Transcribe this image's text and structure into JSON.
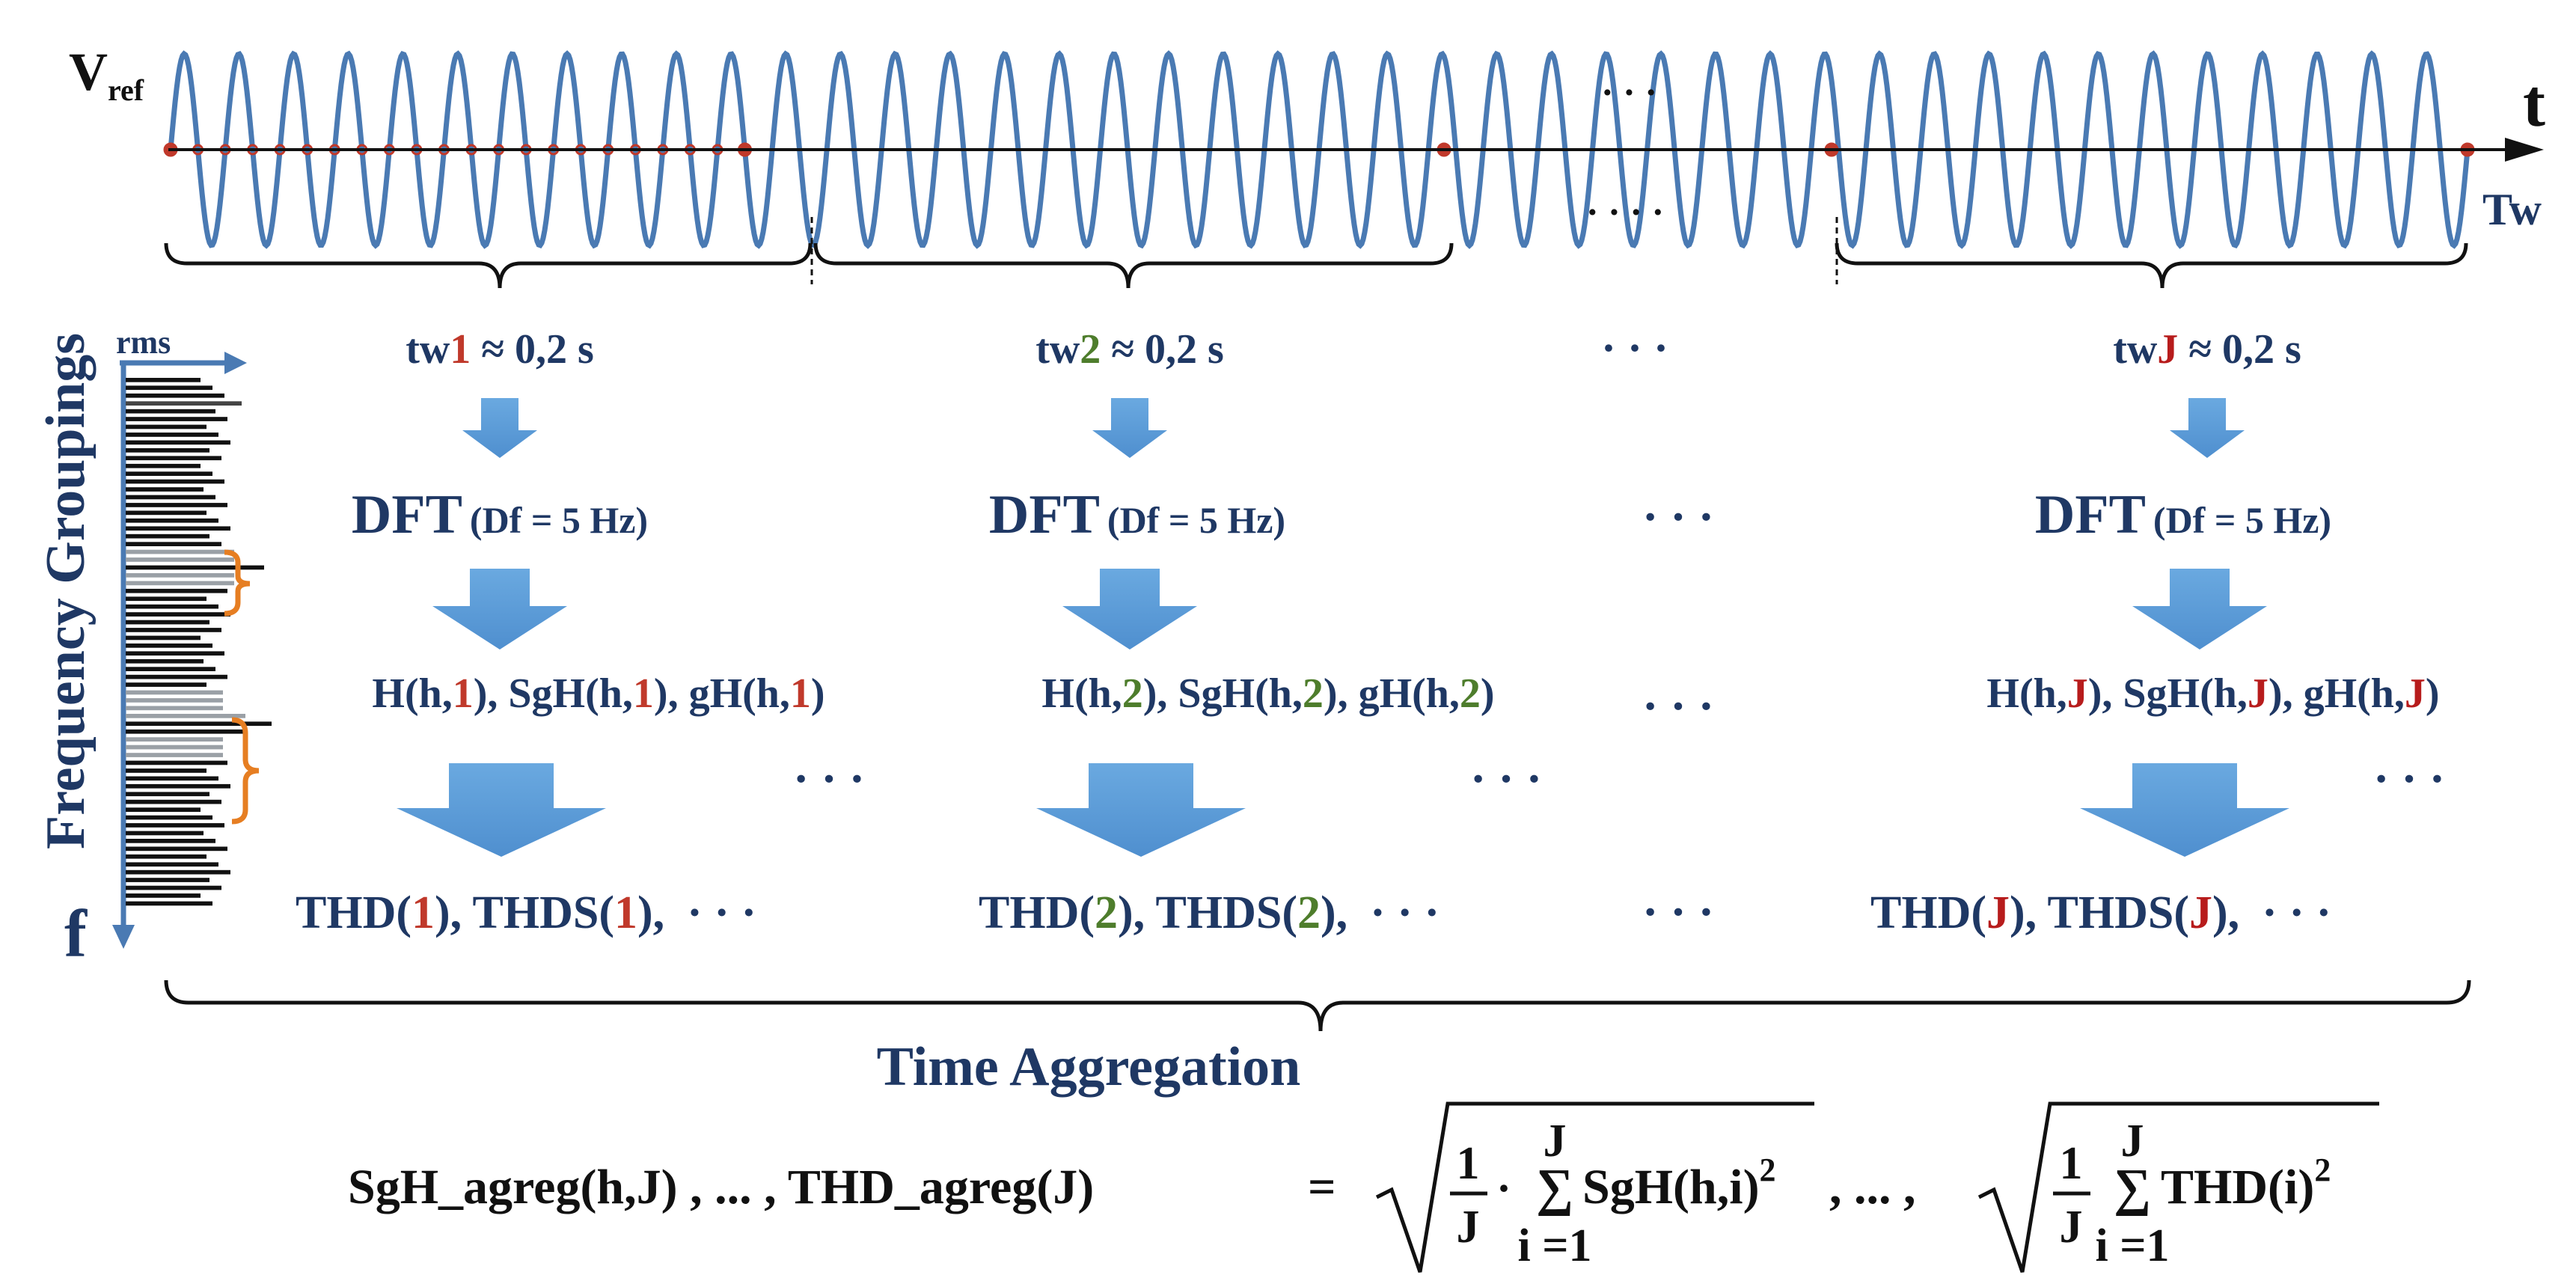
{
  "signal": {
    "label_main": "V",
    "label_sub": "ref",
    "time_axis_label": "t",
    "window_axis_label": "Tw",
    "ellipsis_top": "· · ·",
    "ellipsis_bottom": "· · · ·",
    "line_color": "#4a7ab3",
    "marker_color": "#c0392b"
  },
  "spectrum": {
    "title": "Frequency Groupings",
    "rms_label": "rms",
    "freq_label": "f",
    "bracket_color": "#e67e22",
    "axis_color": "#4a7ab3"
  },
  "windows": [
    {
      "id": "1",
      "tw_prefix": "tw",
      "tw_suffix": " ≈ 0,2 s",
      "dft_main": "DFT",
      "dft_param": "(Df = 5 Hz)",
      "harm_1": "H(h,",
      "harm_2": "), SgH(h,",
      "harm_3": "), gH(h,",
      "harm_4": ")",
      "thd_1": "THD(",
      "thd_2": "), THDS(",
      "thd_3": "),",
      "thd_ellipsis": "· · ·",
      "index_color": "#c0392b"
    },
    {
      "id": "2",
      "tw_prefix": "tw",
      "tw_suffix": " ≈ 0,2 s",
      "dft_main": "DFT",
      "dft_param": "(Df = 5 Hz)",
      "harm_1": "H(h,",
      "harm_2": "), SgH(h,",
      "harm_3": "), gH(h,",
      "harm_4": ")",
      "thd_1": "THD(",
      "thd_2": "), THDS(",
      "thd_3": "),",
      "thd_ellipsis": "· · ·",
      "index_color": "#4e7d2c"
    },
    {
      "id": "J",
      "tw_prefix": "tw",
      "tw_suffix": " ≈ 0,2 s",
      "dft_main": "DFT",
      "dft_param": "(Df = 5 Hz)",
      "harm_1": "H(h,",
      "harm_2": "), SgH(h,",
      "harm_3": "), gH(h,",
      "harm_4": ")",
      "thd_1": "THD(",
      "thd_2": "), THDS(",
      "thd_3": "),",
      "thd_ellipsis": "· · ·",
      "index_color": "#b71c1c"
    }
  ],
  "gaps": {
    "tw": "· · ·",
    "dft": "· · ·",
    "harm": "· · ·",
    "arrow_1": "· · ·",
    "arrow_2": "· · ·",
    "arrow_J": "· · ·",
    "thd": "· · ·"
  },
  "aggregation": {
    "title": "Time Aggregation",
    "lhs": "SgH_agreg(h,J) , ... , THD_agreg(J)",
    "equals": "=",
    "frac_num": "1",
    "frac_den": "J",
    "dot": "·",
    "sum_top": "J",
    "sum_symbol": "∑",
    "sum_bottom": "i =1",
    "term1": "SgH(h,i)",
    "power": "2",
    "sep": ", ... ,",
    "term2": "THD(i)"
  },
  "colors": {
    "text": "#1f3864",
    "arrow": "#5b9bd5"
  }
}
